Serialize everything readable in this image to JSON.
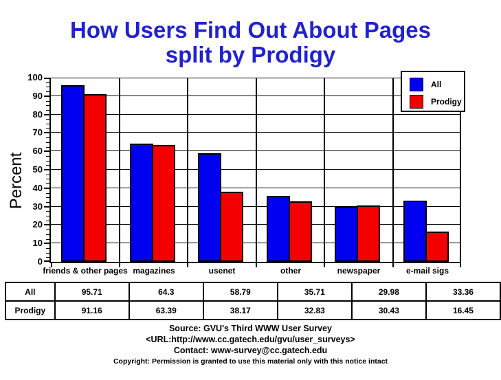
{
  "title": {
    "line1": "How Users Find Out About Pages",
    "line2": "split by Prodigy"
  },
  "colors": {
    "title_text": "#2222cc",
    "all_series": "#0000f0",
    "prodigy_series": "#f40000",
    "axis": "#000000",
    "background": "#ffffff"
  },
  "legend": {
    "items": [
      {
        "label": "All",
        "color": "#0000f0"
      },
      {
        "label": "Prodigy",
        "color": "#f40000"
      }
    ]
  },
  "chart_data": {
    "type": "bar",
    "title": "How Users Find Out About Pages split by Prodigy",
    "xlabel": "",
    "ylabel": "Percent",
    "ylim": [
      0,
      100
    ],
    "ytick_step": 10,
    "yminor_step": 2.5,
    "grid": true,
    "legend_position": "top-right",
    "categories": [
      "friends & other pages",
      "magazines",
      "usenet",
      "other",
      "newspaper",
      "e-mail sigs"
    ],
    "series": [
      {
        "name": "All",
        "color": "#0000f0",
        "values": [
          95.71,
          64.3,
          58.79,
          35.71,
          29.98,
          33.36
        ]
      },
      {
        "name": "Prodigy",
        "color": "#f40000",
        "values": [
          91.16,
          63.39,
          38.17,
          32.83,
          30.43,
          16.45
        ]
      }
    ]
  },
  "table": {
    "rows": [
      {
        "label": "All",
        "values": [
          "95.71",
          "64.3",
          "58.79",
          "35.71",
          "29.98",
          "33.36"
        ]
      },
      {
        "label": "Prodigy",
        "values": [
          "91.16",
          "63.39",
          "38.17",
          "32.83",
          "30.43",
          "16.45"
        ]
      }
    ]
  },
  "footer": {
    "source": "Source: GVU's Third WWW User Survey",
    "url": "<URL:http://www.cc.gatech.edu/gvu/user_surveys>",
    "contact": "Contact: www-survey@cc.gatech.edu",
    "copyright": "Copyright: Permission is granted to use this material only with this notice intact"
  }
}
